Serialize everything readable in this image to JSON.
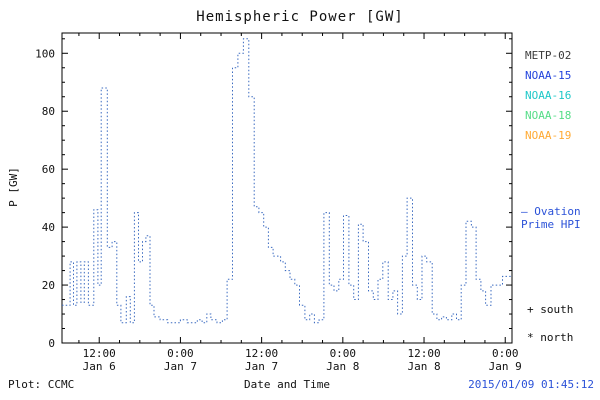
{
  "title": "Hemispheric Power [GW]",
  "footer": {
    "plot_credit": "Plot: CCMC",
    "timestamp": "2015/01/09 01:45:12",
    "timestamp_color": "#2b52d8"
  },
  "legend": {
    "satellites": [
      {
        "label": "METP-02",
        "color": "#3a3a3a"
      },
      {
        "label": "NOAA-15",
        "color": "#2244dd"
      },
      {
        "label": "NOAA-16",
        "color": "#1ec8c8"
      },
      {
        "label": "NOAA-18",
        "color": "#55dd88"
      },
      {
        "label": "NOAA-19",
        "color": "#ffaa33"
      }
    ],
    "ovation": [
      "— Ovation",
      "Prime HPI"
    ],
    "ovation_color": "#2b52d8",
    "markers": [
      {
        "symbol": "+",
        "label": "south"
      },
      {
        "symbol": "*",
        "label": "north"
      }
    ]
  },
  "chart_data": {
    "type": "line",
    "line_style": "dotted-step",
    "series_name": "Ovation Prime HPI",
    "title": "Hemispheric Power [GW]",
    "xlabel": "Date and Time",
    "ylabel": "P [GW]",
    "ylim": [
      0,
      107
    ],
    "y_ticks": [
      0,
      20,
      40,
      60,
      80,
      100
    ],
    "xlim_hours": [
      0.5,
      67
    ],
    "x_ticks": [
      {
        "h": 6,
        "time": "12:00",
        "date": "Jan 6"
      },
      {
        "h": 18,
        "time": "0:00",
        "date": "Jan 7"
      },
      {
        "h": 30,
        "time": "12:00",
        "date": "Jan 7"
      },
      {
        "h": 42,
        "time": "0:00",
        "date": "Jan 8"
      },
      {
        "h": 54,
        "time": "12:00",
        "date": "Jan 8"
      },
      {
        "h": 66,
        "time": "0:00",
        "date": "Jan 9"
      }
    ],
    "line_color": "#3a6ac0",
    "points_hours_gw": [
      [
        0.5,
        13
      ],
      [
        1.7,
        28
      ],
      [
        2.2,
        13
      ],
      [
        2.7,
        28
      ],
      [
        3.3,
        14
      ],
      [
        3.8,
        28
      ],
      [
        4.4,
        13
      ],
      [
        5.2,
        46
      ],
      [
        5.8,
        20
      ],
      [
        6.3,
        88
      ],
      [
        7.2,
        33
      ],
      [
        7.9,
        35
      ],
      [
        8.6,
        13
      ],
      [
        9.2,
        7
      ],
      [
        10.0,
        16
      ],
      [
        10.6,
        7
      ],
      [
        11.2,
        45
      ],
      [
        11.8,
        28
      ],
      [
        12.4,
        35
      ],
      [
        12.9,
        37
      ],
      [
        13.5,
        13
      ],
      [
        14.1,
        9
      ],
      [
        15.0,
        8
      ],
      [
        16.1,
        7
      ],
      [
        18.0,
        8
      ],
      [
        19.0,
        7
      ],
      [
        20.5,
        8
      ],
      [
        21.2,
        7
      ],
      [
        21.9,
        10
      ],
      [
        22.5,
        8
      ],
      [
        23.4,
        7
      ],
      [
        24.2,
        8
      ],
      [
        24.9,
        22
      ],
      [
        25.7,
        95
      ],
      [
        26.5,
        100
      ],
      [
        27.3,
        105
      ],
      [
        28.1,
        85
      ],
      [
        28.9,
        47
      ],
      [
        29.6,
        45
      ],
      [
        30.3,
        40
      ],
      [
        31.0,
        33
      ],
      [
        31.7,
        30
      ],
      [
        32.8,
        28
      ],
      [
        33.5,
        25
      ],
      [
        34.2,
        22
      ],
      [
        34.9,
        20
      ],
      [
        35.6,
        13
      ],
      [
        36.4,
        8
      ],
      [
        37.1,
        10
      ],
      [
        37.8,
        7
      ],
      [
        38.5,
        8
      ],
      [
        39.2,
        45
      ],
      [
        40.0,
        20
      ],
      [
        40.7,
        18
      ],
      [
        41.4,
        22
      ],
      [
        42.1,
        44
      ],
      [
        42.9,
        20
      ],
      [
        43.6,
        15
      ],
      [
        44.3,
        41
      ],
      [
        45.0,
        35
      ],
      [
        45.8,
        18
      ],
      [
        46.5,
        15
      ],
      [
        47.2,
        22
      ],
      [
        47.9,
        28
      ],
      [
        48.7,
        15
      ],
      [
        49.4,
        18
      ],
      [
        50.1,
        10
      ],
      [
        50.8,
        30
      ],
      [
        51.5,
        50
      ],
      [
        52.3,
        20
      ],
      [
        53.0,
        15
      ],
      [
        53.7,
        30
      ],
      [
        54.4,
        28
      ],
      [
        55.2,
        10
      ],
      [
        55.9,
        8
      ],
      [
        56.6,
        9
      ],
      [
        57.3,
        8
      ],
      [
        58.1,
        10
      ],
      [
        58.8,
        8
      ],
      [
        59.5,
        20
      ],
      [
        60.2,
        42
      ],
      [
        61.0,
        40
      ],
      [
        61.7,
        22
      ],
      [
        62.4,
        18
      ],
      [
        63.1,
        13
      ],
      [
        63.9,
        20
      ],
      [
        65.6,
        23
      ]
    ]
  }
}
